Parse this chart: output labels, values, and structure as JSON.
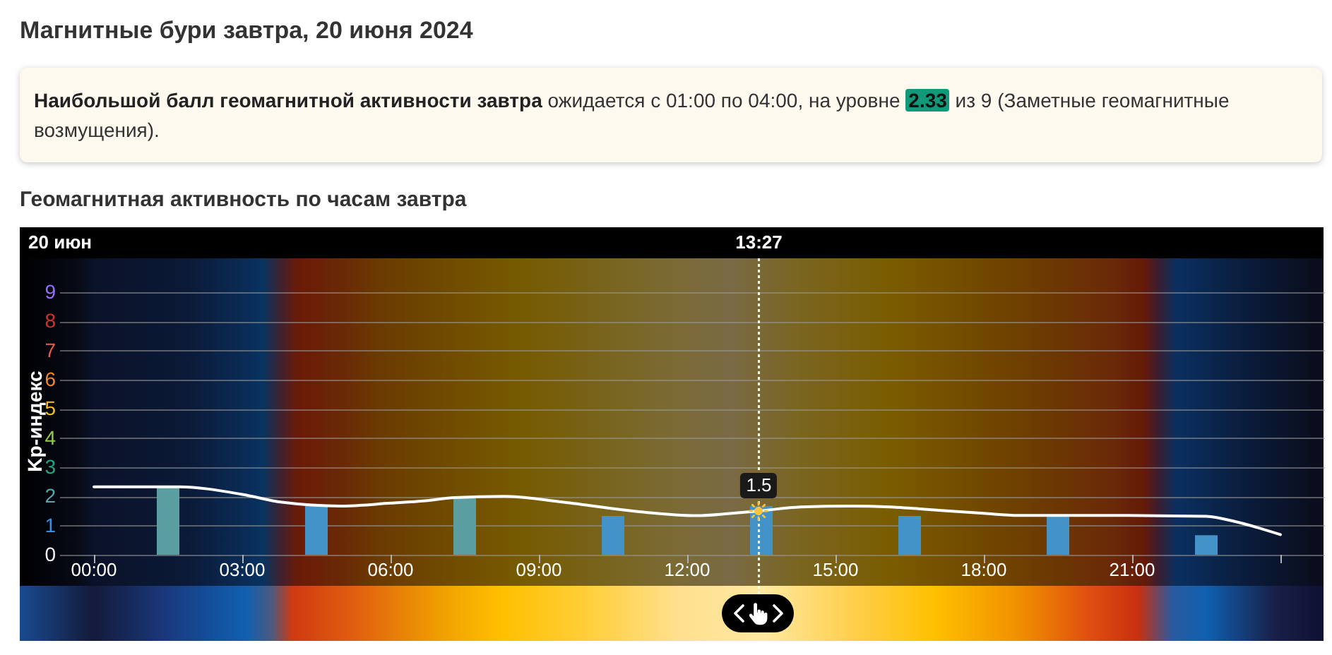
{
  "chart_data": {
    "type": "bar",
    "title": "Магнитные бури завтра, 20 июня 2024",
    "subtitle": "Геомагнитная активность по часам завтра",
    "ylabel": "Kp-индекс",
    "annotations": [
      "Наибольшой балл геомагнитной активности завтра",
      "ожидается с 01:00 по 04:00, на уровне",
      "2.33",
      "из 9 (Заметные геомагнитные возмущения).",
      "20 июн",
      {
        "text": "1.5",
        "x": 13.45,
        "y": 1.5
      }
    ],
    "series": [
      {
        "x": [
          1.5,
          4.5,
          7.5,
          10.5,
          13.5,
          16.5,
          19.5,
          22.5
        ],
        "values": [
          2.33,
          1.67,
          2,
          1.33,
          1.67,
          1.33,
          1.33,
          0.67
        ],
        "colors": [
          "#5b9ea0",
          "#4393c9",
          "#5b9ea0",
          "#4393c9",
          "#4393c9",
          "#4393c9",
          "#4393c9",
          "#4393c9"
        ]
      },
      {
        "type": "line",
        "color": "#ffffff",
        "x": [
          0,
          1.7,
          3,
          3.8,
          5,
          6,
          6.7,
          7.3,
          8.3,
          9.5,
          11,
          12.2,
          12.9,
          13.45,
          14.3,
          15.3,
          16.1,
          16.8,
          18,
          18.7,
          20.6,
          22.5,
          23.1,
          24
        ],
        "values": [
          2.33,
          2.33,
          2.07,
          1.8,
          1.67,
          1.77,
          1.85,
          1.96,
          2,
          1.8,
          1.48,
          1.34,
          1.42,
          1.5,
          1.64,
          1.67,
          1.64,
          1.56,
          1.42,
          1.35,
          1.35,
          1.32,
          1.13,
          0.69
        ]
      }
    ],
    "xlim": [
      -0.7,
      24.9
    ],
    "xticks": [
      {
        "value": 0,
        "label": "00:00"
      },
      {
        "value": 3,
        "label": "03:00"
      },
      {
        "value": 6,
        "label": "06:00"
      },
      {
        "value": 9,
        "label": "09:00"
      },
      {
        "value": 12,
        "label": "12:00"
      },
      {
        "value": 15,
        "label": "15:00"
      },
      {
        "value": 18,
        "label": "18:00"
      },
      {
        "value": 21,
        "label": "21:00"
      },
      {
        "value": 24,
        "label": null
      }
    ],
    "ylim": [
      0,
      9
    ],
    "yticks": [
      0,
      1,
      2,
      3,
      4,
      5,
      6,
      7,
      8,
      9
    ],
    "grid": "y",
    "ref_lines": [
      {
        "axis": "x",
        "value": 13.45,
        "label": "13:27",
        "color": "#ffffff",
        "line_style": "dotted"
      }
    ]
  }
}
